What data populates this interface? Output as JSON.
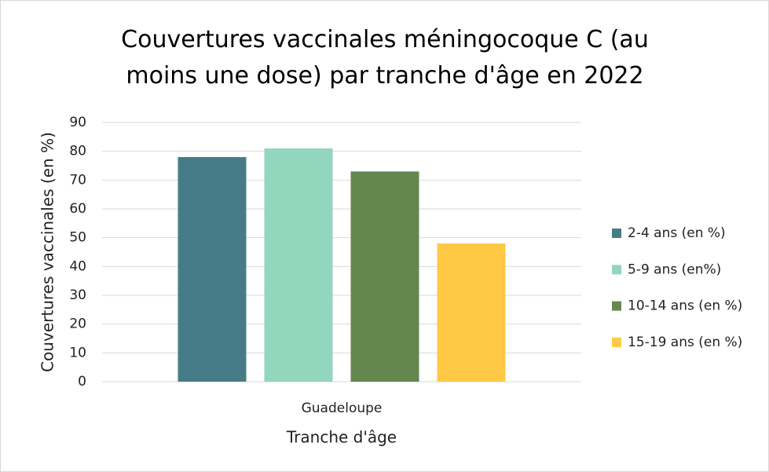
{
  "chart_data": {
    "type": "bar",
    "title": "Couvertures vaccinales méningocoque C (au moins une dose) par tranche d'âge en 2022",
    "xlabel": "Tranche d'âge",
    "ylabel": "Couvertures vaccinales (en %)",
    "categories": [
      "Guadeloupe"
    ],
    "series": [
      {
        "name": "2-4 ans (en %)",
        "color": "#467c87",
        "values": [
          78
        ]
      },
      {
        "name": "5-9 ans (en%)",
        "color": "#91d6bd",
        "values": [
          81
        ]
      },
      {
        "name": "10-14 ans (en %)",
        "color": "#648750",
        "values": [
          73
        ]
      },
      {
        "name": "15-19 ans (en %)",
        "color": "#ffc845",
        "values": [
          48
        ]
      }
    ],
    "ylim": [
      0,
      90
    ],
    "yticks": [
      0,
      10,
      20,
      30,
      40,
      50,
      60,
      70,
      80,
      90
    ],
    "grid": true,
    "legend": "right"
  }
}
